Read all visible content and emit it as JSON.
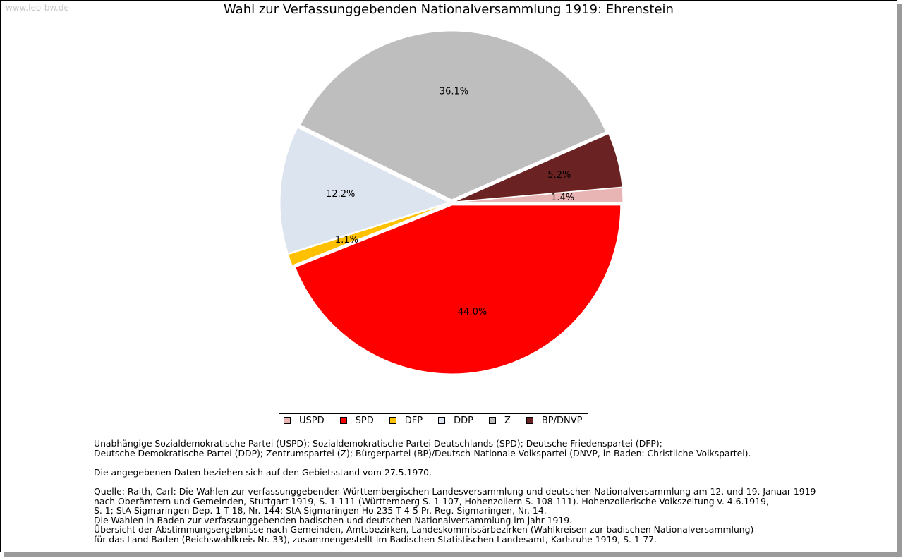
{
  "watermark": "www.leo-bw.de",
  "chart_data": {
    "type": "pie",
    "title": "Wahl zur Verfassunggebenden Nationalversammlung 1919: Ehrenstein",
    "slices": [
      {
        "name": "USPD",
        "value": 1.4,
        "label": "1.4%",
        "color": "#e8b4b4"
      },
      {
        "name": "SPD",
        "value": 44.0,
        "label": "44.0%",
        "color": "#ff0000"
      },
      {
        "name": "DFP",
        "value": 1.1,
        "label": "1.1%",
        "color": "#ffc000"
      },
      {
        "name": "DDP",
        "value": 12.2,
        "label": "12.2%",
        "color": "#dce4f0"
      },
      {
        "name": "Z",
        "value": 36.1,
        "label": "36.1%",
        "color": "#bebebe"
      },
      {
        "name": "BP/DNVP",
        "value": 5.2,
        "label": "5.2%",
        "color": "#6b2222"
      }
    ],
    "legend_position": "bottom"
  },
  "notes": {
    "line1": "Unabhängige Sozialdemokratische Partei (USPD); Sozialdemokratische Partei Deutschlands (SPD); Deutsche Friedenspartei (DFP);",
    "line2": "Deutsche Demokratische Partei (DDP); Zentrumspartei (Z); Bürgerpartei (BP)/Deutsch-Nationale Volkspartei (DNVP, in Baden: Christliche Volkspartei).",
    "line3": "Die angegebenen Daten beziehen sich auf den Gebietsstand vom 27.5.1970.",
    "line4": "Quelle: Raith, Carl: Die Wahlen zur verfassunggebenden Württembergischen Landesversammlung und deutschen Nationalversammlung am 12. und 19. Januar 1919",
    "line5": "nach Oberämtern und Gemeinden, Stuttgart 1919, S. 1-111 (Württemberg S. 1-107, Hohenzollern S. 108-111). Hohenzollerische Volkszeitung v. 4.6.1919,",
    "line6": "S. 1; StA Sigmaringen Dep. 1 T 18, Nr. 144; StA Sigmaringen Ho 235 T 4-5 Pr. Reg. Sigmaringen, Nr. 14.",
    "line7": "Die Wahlen in Baden zur verfassunggebenden badischen und deutschen Nationalversammlung im jahr 1919.",
    "line8": "Übersicht der Abstimmungsergebnisse nach Gemeinden, Amtsbezirken, Landeskommissärbezirken (Wahlkreisen zur badischen Nationalversammlung)",
    "line9": "für das Land Baden (Reichswahlkreis Nr. 33), zusammengestellt im Badischen Statistischen Landesamt, Karlsruhe 1919, S. 1-77."
  }
}
